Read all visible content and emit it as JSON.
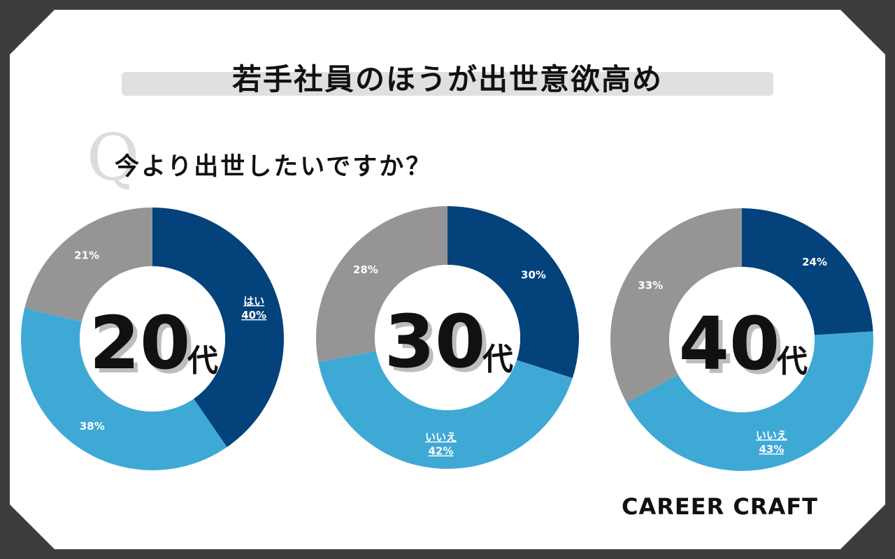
{
  "header": {
    "title": "若手社員のほうが出世意欲高め",
    "question": "今より出世したいですか？",
    "q_mark": "Q"
  },
  "brand": "CAREER CRAFT",
  "colors": {
    "hai": "#03427a",
    "iie": "#3fa9d6",
    "other": "#959595"
  },
  "chart_data": [
    {
      "type": "pie",
      "center_label": "20",
      "center_suffix": "代",
      "slices": [
        {
          "name": "はい",
          "value": 40,
          "color": "#03427a",
          "label": "40%",
          "category_label": "はい"
        },
        {
          "name": "いいえ",
          "value": 38,
          "color": "#3fa9d6",
          "label": "38%",
          "category_label": ""
        },
        {
          "name": "",
          "value": 21,
          "color": "#959595",
          "label": "21%",
          "category_label": ""
        }
      ]
    },
    {
      "type": "pie",
      "center_label": "30",
      "center_suffix": "代",
      "slices": [
        {
          "name": "はい",
          "value": 30,
          "color": "#03427a",
          "label": "30%",
          "category_label": ""
        },
        {
          "name": "いいえ",
          "value": 42,
          "color": "#3fa9d6",
          "label": "42%",
          "category_label": "いいえ"
        },
        {
          "name": "",
          "value": 28,
          "color": "#959595",
          "label": "28%",
          "category_label": ""
        }
      ]
    },
    {
      "type": "pie",
      "center_label": "40",
      "center_suffix": "代",
      "slices": [
        {
          "name": "はい",
          "value": 24,
          "color": "#03427a",
          "label": "24%",
          "category_label": ""
        },
        {
          "name": "いいえ",
          "value": 43,
          "color": "#3fa9d6",
          "label": "43%",
          "category_label": "いいえ"
        },
        {
          "name": "",
          "value": 33,
          "color": "#959595",
          "label": "33%",
          "category_label": ""
        }
      ]
    }
  ]
}
